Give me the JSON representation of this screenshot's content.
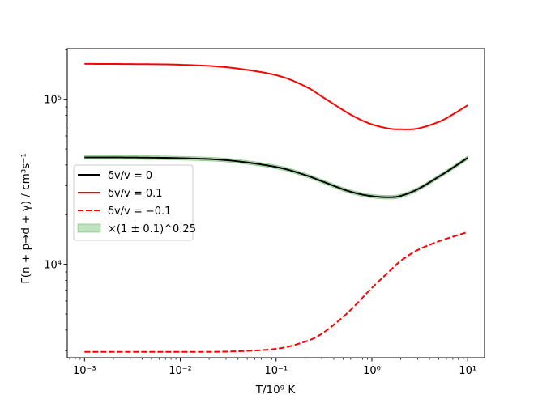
{
  "chart_data": {
    "type": "line",
    "xscale": "log",
    "yscale": "log",
    "xlim": [
      0.00066,
      15
    ],
    "ylim": [
      2720,
      203000
    ],
    "xlabel": "T/10⁹ K",
    "ylabel": "Γ(n + p→d + γ) / cm³s⁻¹",
    "x_ticks": [
      {
        "value": 0.001,
        "label": "10⁻³"
      },
      {
        "value": 0.01,
        "label": "10⁻²"
      },
      {
        "value": 0.1,
        "label": "10⁻¹"
      },
      {
        "value": 1,
        "label": "10⁰"
      },
      {
        "value": 10,
        "label": "10¹"
      }
    ],
    "y_ticks": [
      {
        "value": 10000,
        "label": "10⁴"
      },
      {
        "value": 100000,
        "label": "10⁵"
      }
    ],
    "grid": false,
    "legend": {
      "placement": "center-left"
    },
    "x": [
      0.001,
      0.00316,
      0.01,
      0.0316,
      0.1,
      0.2,
      0.3,
      0.5,
      0.7,
      1.0,
      1.5,
      2.0,
      3.0,
      5.0,
      7.0,
      10.0
    ],
    "series": [
      {
        "name": "δv/v = 0",
        "color": "#000000",
        "style": "solid",
        "values": [
          44500,
          44400,
          44000,
          42700,
          38900,
          34800,
          31900,
          28500,
          26900,
          25900,
          25500,
          26000,
          28500,
          34000,
          38500,
          44200
        ]
      },
      {
        "name": "δv/v = 0.1",
        "color": "#ff0000",
        "style": "solid",
        "values": [
          164000,
          163500,
          162000,
          156000,
          140000,
          120000,
          104000,
          86000,
          77000,
          70500,
          66500,
          65800,
          66500,
          73000,
          81000,
          92000
        ]
      },
      {
        "name": "δv/v = −0.1",
        "color": "#ff0000",
        "style": "dashed",
        "values": [
          2950,
          2950,
          2952,
          2965,
          3080,
          3400,
          3800,
          4800,
          5800,
          7200,
          9000,
          10500,
          12200,
          13800,
          14700,
          15700
        ]
      }
    ],
    "bands": [
      {
        "name": "×(1 ± 0.1)^0.25",
        "color": "#2ca02c",
        "opacity": 0.3,
        "around_series": "δv/v = 0",
        "relative_half_width": 0.0253
      }
    ]
  }
}
